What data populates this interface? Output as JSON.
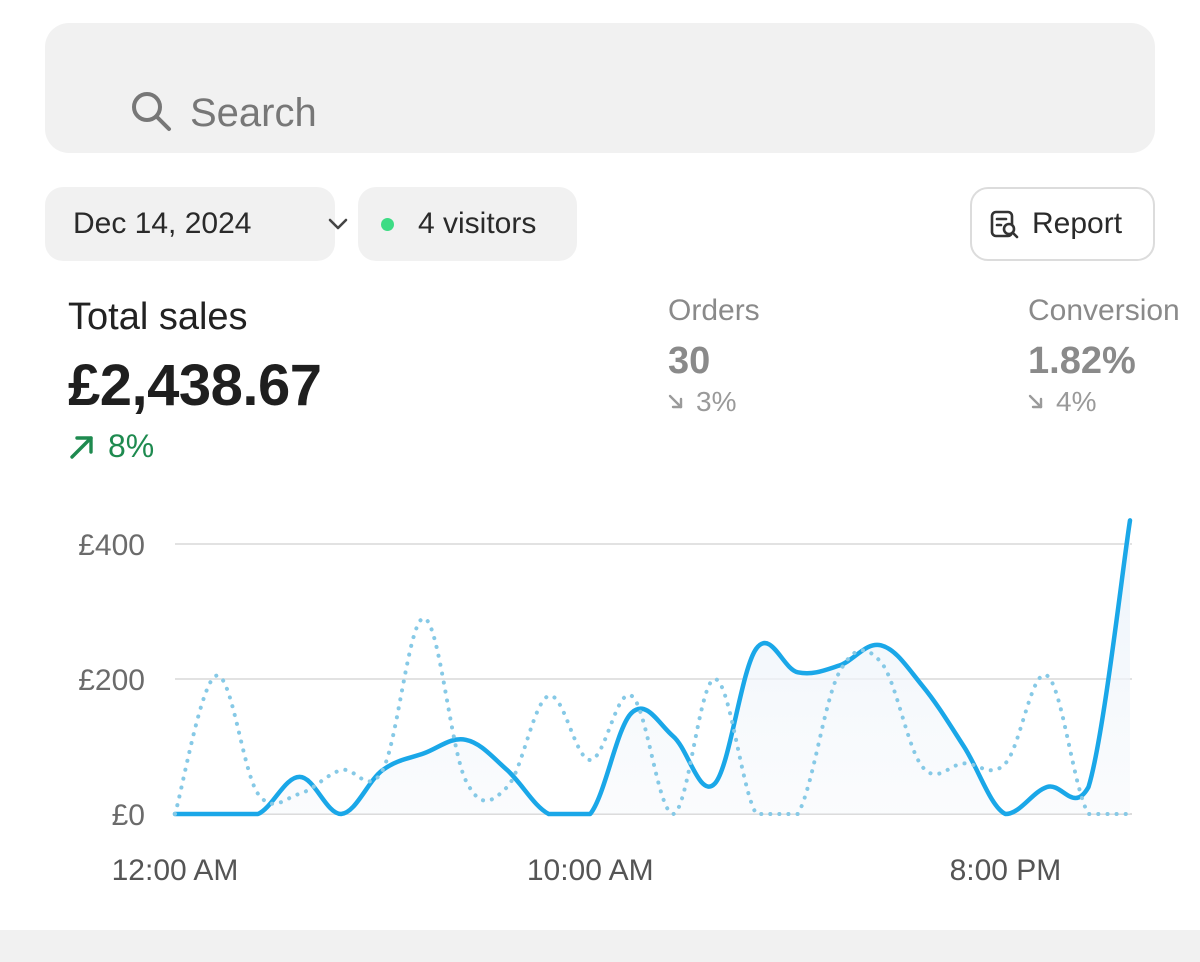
{
  "search": {
    "placeholder": "Search",
    "icon": "search-icon"
  },
  "filters": {
    "date_label": "Dec 14, 2024",
    "visitors_label": "4 visitors",
    "live_color": "#3ddc84"
  },
  "report_button": {
    "label": "Report",
    "icon": "report-search-icon"
  },
  "metrics": {
    "total_sales": {
      "label": "Total sales",
      "value": "£2,438.67",
      "change": "8%",
      "direction": "up",
      "color": "#1e8a4f"
    },
    "orders": {
      "label": "Orders",
      "value": "30",
      "change": "3%",
      "direction": "down"
    },
    "conversion": {
      "label": "Conversion",
      "value": "1.82%",
      "change": "4%",
      "direction": "down"
    }
  },
  "chart_data": {
    "type": "line",
    "x_unit": "hour",
    "x": [
      0,
      1,
      2,
      3,
      4,
      5,
      6,
      7,
      8,
      9,
      10,
      11,
      12,
      13,
      14,
      15,
      16,
      17,
      18,
      19,
      20,
      21,
      22,
      23
    ],
    "xticks": [
      {
        "x": 0,
        "label": "12:00 AM"
      },
      {
        "x": 10,
        "label": "10:00 AM"
      },
      {
        "x": 20,
        "label": "8:00 PM"
      }
    ],
    "ylim": [
      0,
      430
    ],
    "yticks": [
      {
        "y": 0,
        "label": "£0"
      },
      {
        "y": 200,
        "label": "£200"
      },
      {
        "y": 400,
        "label": "£400"
      }
    ],
    "grid": true,
    "series": [
      {
        "style": "solid",
        "color": "#1aa7e8",
        "values": [
          0,
          0,
          0,
          55,
          0,
          65,
          90,
          110,
          65,
          0,
          0,
          150,
          115,
          45,
          245,
          210,
          220,
          250,
          190,
          100,
          0,
          40,
          40,
          435
        ]
      },
      {
        "style": "dotted",
        "color": "#86c9e6",
        "values": [
          0,
          205,
          30,
          30,
          65,
          65,
          290,
          50,
          40,
          175,
          80,
          175,
          0,
          200,
          0,
          0,
          210,
          225,
          70,
          75,
          75,
          205,
          0,
          0
        ]
      }
    ]
  }
}
